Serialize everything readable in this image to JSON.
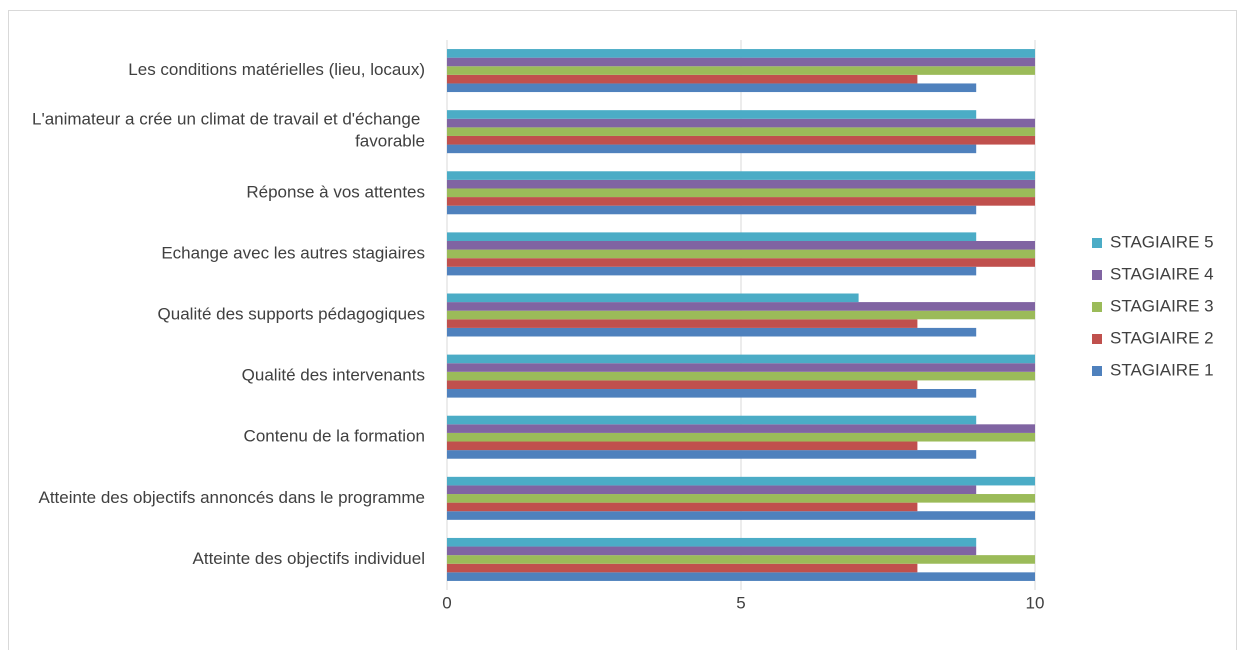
{
  "chart_data": {
    "type": "bar",
    "orientation": "horizontal",
    "categories": [
      "Atteinte des objectifs individuel",
      "Atteinte des objectifs annoncés dans le programme",
      "Contenu de la formation",
      "Qualité des intervenants",
      "Qualité des supports pédagogiques",
      "Echange avec les autres stagiaires",
      "Réponse à vos attentes",
      "L'animateur a crée un climat de travail et d'échange favorable",
      "Les conditions matérielles (lieu, locaux)"
    ],
    "series": [
      {
        "name": "STAGIAIRE 1",
        "color": "#4F81BD",
        "values": [
          10,
          10,
          9,
          9,
          9,
          9,
          9,
          9,
          9
        ]
      },
      {
        "name": "STAGIAIRE 2",
        "color": "#C0504D",
        "values": [
          8,
          8,
          8,
          8,
          8,
          10,
          10,
          10,
          8
        ]
      },
      {
        "name": "STAGIAIRE 3",
        "color": "#9BBB59",
        "values": [
          10,
          10,
          10,
          10,
          10,
          10,
          10,
          10,
          10
        ]
      },
      {
        "name": "STAGIAIRE 4",
        "color": "#8064A2",
        "values": [
          9,
          9,
          10,
          10,
          10,
          10,
          10,
          10,
          10
        ]
      },
      {
        "name": "STAGIAIRE 5",
        "color": "#4BACC6",
        "values": [
          9,
          10,
          9,
          10,
          7,
          9,
          10,
          9,
          10
        ]
      }
    ],
    "xlim": [
      0,
      10
    ],
    "xticks": [
      0,
      5,
      10
    ],
    "grid": true,
    "legend": "right"
  }
}
